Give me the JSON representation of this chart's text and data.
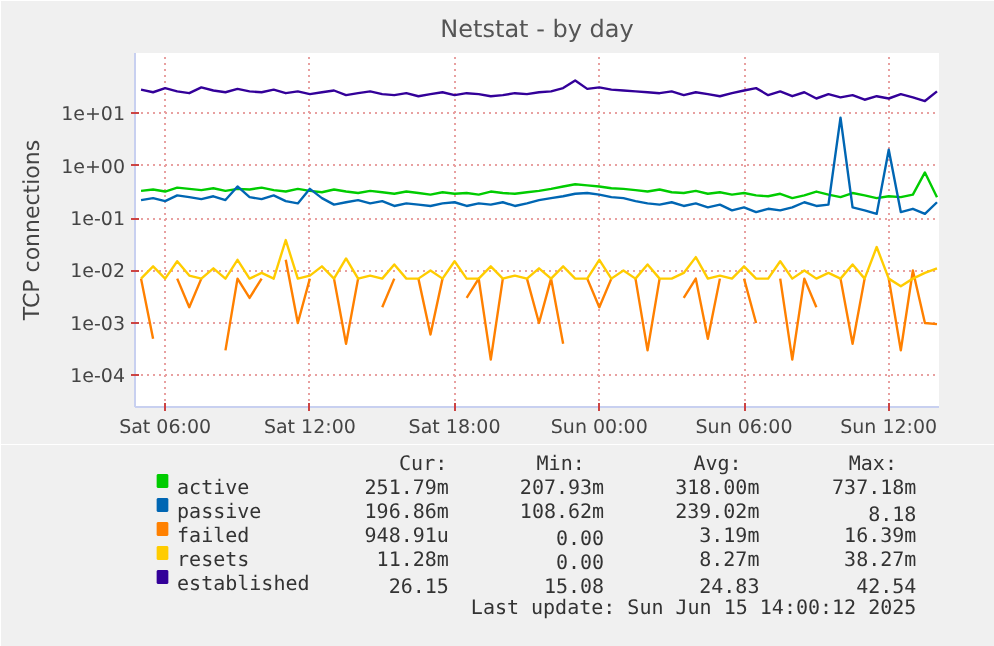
{
  "chart_data": {
    "type": "line",
    "title": "Netstat - by day",
    "ylabel": "TCP connections",
    "log": "y",
    "grid": true,
    "legend": "bottom",
    "line_style": "solid",
    "xlim": [
      "2025-06-14T04:45",
      "2025-06-15T14:05"
    ],
    "xticks": [
      {
        "value": "2025-06-14T06:00",
        "label": "Sat 06:00"
      },
      {
        "value": "2025-06-14T12:00",
        "label": "Sat 12:00"
      },
      {
        "value": "2025-06-14T18:00",
        "label": "Sat 18:00"
      },
      {
        "value": "2025-06-15T00:00",
        "label": "Sun 00:00"
      },
      {
        "value": "2025-06-15T06:00",
        "label": "Sun 06:00"
      },
      {
        "value": "2025-06-15T12:00",
        "label": "Sun 12:00"
      }
    ],
    "ylim": [
      2.5e-05,
      140
    ],
    "yticks": [
      {
        "value": 10,
        "label": "1e+01"
      },
      {
        "value": 1,
        "label": "1e+00"
      },
      {
        "value": 0.1,
        "label": "1e-01"
      },
      {
        "value": 0.01,
        "label": "1e-02"
      },
      {
        "value": 0.001,
        "label": "1e-03"
      },
      {
        "value": 0.0001,
        "label": "1e-04"
      }
    ],
    "x": [
      "2025-06-14T05:00",
      "2025-06-14T05:30",
      "2025-06-14T06:00",
      "2025-06-14T06:30",
      "2025-06-14T07:00",
      "2025-06-14T07:30",
      "2025-06-14T08:00",
      "2025-06-14T08:30",
      "2025-06-14T09:00",
      "2025-06-14T09:30",
      "2025-06-14T10:00",
      "2025-06-14T10:30",
      "2025-06-14T11:00",
      "2025-06-14T11:30",
      "2025-06-14T12:00",
      "2025-06-14T12:30",
      "2025-06-14T13:00",
      "2025-06-14T13:30",
      "2025-06-14T14:00",
      "2025-06-14T14:30",
      "2025-06-14T15:00",
      "2025-06-14T15:30",
      "2025-06-14T16:00",
      "2025-06-14T16:30",
      "2025-06-14T17:00",
      "2025-06-14T17:30",
      "2025-06-14T18:00",
      "2025-06-14T18:30",
      "2025-06-14T19:00",
      "2025-06-14T19:30",
      "2025-06-14T20:00",
      "2025-06-14T20:30",
      "2025-06-14T21:00",
      "2025-06-14T21:30",
      "2025-06-14T22:00",
      "2025-06-14T22:30",
      "2025-06-14T23:00",
      "2025-06-14T23:30",
      "2025-06-15T00:00",
      "2025-06-15T00:30",
      "2025-06-15T01:00",
      "2025-06-15T01:30",
      "2025-06-15T02:00",
      "2025-06-15T02:30",
      "2025-06-15T03:00",
      "2025-06-15T03:30",
      "2025-06-15T04:00",
      "2025-06-15T04:30",
      "2025-06-15T05:00",
      "2025-06-15T05:30",
      "2025-06-15T06:00",
      "2025-06-15T06:30",
      "2025-06-15T07:00",
      "2025-06-15T07:30",
      "2025-06-15T08:00",
      "2025-06-15T08:30",
      "2025-06-15T09:00",
      "2025-06-15T09:30",
      "2025-06-15T10:00",
      "2025-06-15T10:30",
      "2025-06-15T11:00",
      "2025-06-15T11:30",
      "2025-06-15T12:00",
      "2025-06-15T12:30",
      "2025-06-15T13:00",
      "2025-06-15T13:30",
      "2025-06-15T14:00"
    ],
    "series": [
      {
        "name": "active",
        "color": "#00cc00",
        "values": [
          0.33,
          0.35,
          0.32,
          0.38,
          0.36,
          0.34,
          0.37,
          0.33,
          0.36,
          0.35,
          0.38,
          0.34,
          0.32,
          0.36,
          0.33,
          0.31,
          0.35,
          0.32,
          0.3,
          0.33,
          0.31,
          0.29,
          0.32,
          0.3,
          0.28,
          0.31,
          0.29,
          0.3,
          0.28,
          0.32,
          0.3,
          0.29,
          0.31,
          0.33,
          0.36,
          0.4,
          0.44,
          0.42,
          0.4,
          0.37,
          0.36,
          0.34,
          0.32,
          0.35,
          0.31,
          0.3,
          0.33,
          0.29,
          0.31,
          0.28,
          0.3,
          0.27,
          0.26,
          0.29,
          0.24,
          0.27,
          0.32,
          0.28,
          0.25,
          0.3,
          0.27,
          0.24,
          0.26,
          0.25,
          0.28,
          0.74,
          0.25
        ]
      },
      {
        "name": "passive",
        "color": "#0066b3",
        "values": [
          0.22,
          0.24,
          0.21,
          0.27,
          0.25,
          0.23,
          0.26,
          0.22,
          0.4,
          0.25,
          0.23,
          0.27,
          0.21,
          0.19,
          0.36,
          0.24,
          0.18,
          0.2,
          0.22,
          0.19,
          0.21,
          0.17,
          0.19,
          0.18,
          0.17,
          0.19,
          0.2,
          0.17,
          0.19,
          0.18,
          0.2,
          0.17,
          0.19,
          0.22,
          0.24,
          0.26,
          0.29,
          0.3,
          0.28,
          0.25,
          0.24,
          0.21,
          0.19,
          0.18,
          0.2,
          0.17,
          0.19,
          0.16,
          0.18,
          0.14,
          0.16,
          0.13,
          0.15,
          0.14,
          0.16,
          0.2,
          0.17,
          0.18,
          8.18,
          0.16,
          0.14,
          0.12,
          2.0,
          0.13,
          0.15,
          0.12,
          0.2
        ]
      },
      {
        "name": "failed",
        "color": "#ff8000",
        "values": [
          0.007,
          0.0005,
          null,
          0.007,
          0.002,
          0.007,
          null,
          0.0003,
          0.007,
          0.003,
          0.007,
          null,
          0.016,
          0.001,
          0.007,
          null,
          0.007,
          0.0004,
          0.007,
          null,
          0.002,
          0.007,
          null,
          0.007,
          0.0006,
          0.007,
          null,
          0.003,
          0.007,
          0.0002,
          0.007,
          null,
          0.007,
          0.001,
          0.007,
          0.0004,
          null,
          0.007,
          0.002,
          0.007,
          null,
          0.007,
          0.0003,
          0.007,
          null,
          0.003,
          0.007,
          0.0005,
          0.007,
          null,
          0.007,
          0.001,
          null,
          0.007,
          0.0002,
          0.007,
          0.002,
          null,
          0.007,
          0.0004,
          0.007,
          null,
          0.007,
          0.0003,
          0.01,
          0.001,
          0.00095
        ]
      },
      {
        "name": "resets",
        "color": "#ffcc00",
        "values": [
          0.007,
          0.012,
          0.007,
          0.015,
          0.008,
          0.007,
          0.011,
          0.007,
          0.016,
          0.007,
          0.009,
          0.007,
          0.038,
          0.007,
          0.008,
          0.012,
          0.007,
          0.017,
          0.007,
          0.008,
          0.007,
          0.013,
          0.007,
          0.007,
          0.01,
          0.007,
          0.015,
          0.007,
          0.007,
          0.012,
          0.007,
          0.008,
          0.007,
          0.011,
          0.007,
          0.012,
          0.007,
          0.007,
          0.016,
          0.007,
          0.01,
          0.007,
          0.013,
          0.007,
          0.007,
          0.009,
          0.018,
          0.007,
          0.008,
          0.007,
          0.012,
          0.007,
          0.007,
          0.015,
          0.007,
          0.01,
          0.007,
          0.009,
          0.007,
          0.013,
          0.007,
          0.028,
          0.007,
          0.005,
          0.007,
          0.009,
          0.011
        ]
      },
      {
        "name": "established",
        "color": "#330099",
        "values": [
          28,
          25,
          30,
          26,
          24,
          31,
          27,
          25,
          29,
          26,
          25,
          28,
          24,
          26,
          23,
          25,
          27,
          22,
          24,
          26,
          23,
          22,
          24,
          21,
          23,
          25,
          22,
          24,
          23,
          21,
          22,
          24,
          23,
          25,
          26,
          30,
          42,
          29,
          31,
          28,
          27,
          26,
          25,
          24,
          26,
          22,
          25,
          23,
          21,
          24,
          27,
          30,
          22,
          26,
          21,
          25,
          19,
          23,
          20,
          22,
          18,
          21,
          19,
          23,
          20,
          17,
          26
        ]
      }
    ],
    "annotations": [
      "Cur:",
      "Min:",
      "Avg:",
      "Max:",
      "251.79m",
      "207.93m",
      "318.00m",
      "737.18m",
      "196.86m",
      "108.62m",
      "239.02m",
      "8.18",
      "948.91u",
      "0.00",
      "3.19m",
      "16.39m",
      "11.28m",
      "0.00",
      "8.27m",
      "38.27m",
      "26.15",
      "15.08",
      "24.83",
      "42.54",
      "Last update: Sun Jun 15 14:00:12 2025"
    ]
  }
}
